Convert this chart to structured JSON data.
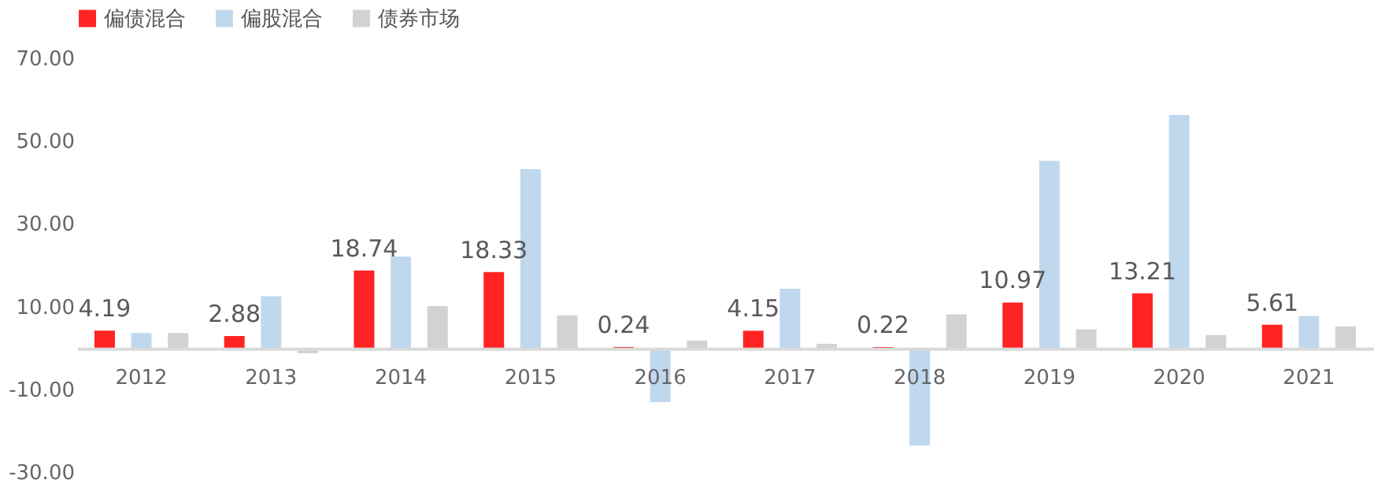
{
  "chart_data": {
    "type": "bar",
    "categories": [
      "2012",
      "2013",
      "2014",
      "2015",
      "2016",
      "2017",
      "2018",
      "2019",
      "2020",
      "2021"
    ],
    "series": [
      {
        "name": "偏债混合",
        "color": "#ff2323",
        "values": [
          4.19,
          2.88,
          18.74,
          18.33,
          0.24,
          4.15,
          0.22,
          10.97,
          13.21,
          5.61
        ],
        "value_labels": [
          "4.19",
          "2.88",
          "18.74",
          "18.33",
          "0.24",
          "4.15",
          "0.22",
          "10.97",
          "13.21",
          "5.61"
        ]
      },
      {
        "name": "偏股混合",
        "color": "#c0d8ee",
        "values": [
          3.6,
          12.5,
          22.1,
          43.2,
          -13.1,
          14.3,
          -23.6,
          45.2,
          56.3,
          7.7
        ]
      },
      {
        "name": "债券市场",
        "color": "#d3d2d2",
        "values": [
          3.6,
          -1.3,
          10.1,
          7.9,
          1.8,
          1.0,
          8.1,
          4.5,
          3.1,
          5.2
        ]
      }
    ],
    "ylim": [
      -30,
      70
    ],
    "yticks": [
      {
        "value": -30,
        "label": "-30.00"
      },
      {
        "value": -10,
        "label": "-10.00"
      },
      {
        "value": 10,
        "label": "10.00"
      },
      {
        "value": 30,
        "label": "30.00"
      },
      {
        "value": 50,
        "label": "50.00"
      },
      {
        "value": 70,
        "label": "70.00"
      }
    ],
    "grid": false,
    "legend": "top"
  }
}
